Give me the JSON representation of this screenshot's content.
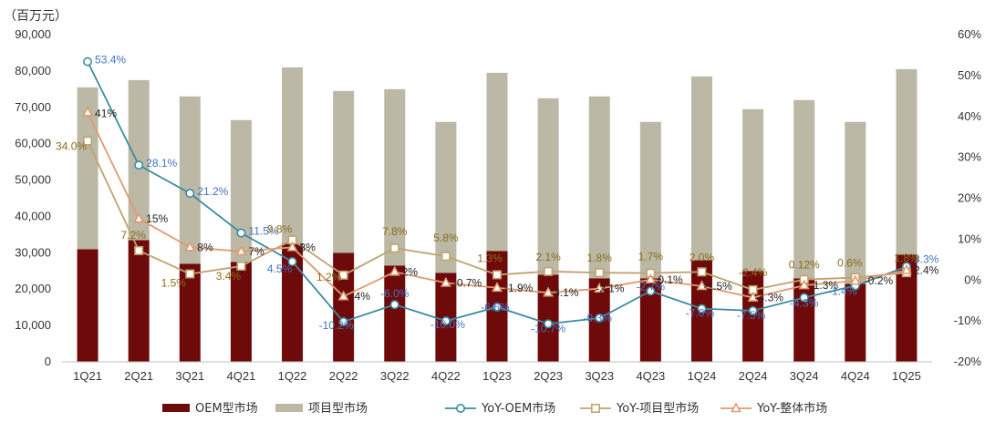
{
  "chart_data": {
    "type": "bar",
    "unit_label": "（百万元）",
    "categories": [
      "1Q21",
      "2Q21",
      "3Q21",
      "4Q21",
      "1Q22",
      "2Q22",
      "3Q22",
      "4Q22",
      "1Q23",
      "2Q23",
      "3Q23",
      "4Q23",
      "1Q24",
      "2Q24",
      "3Q24",
      "4Q24",
      "1Q25"
    ],
    "ylim": [
      0,
      90000
    ],
    "y_ticks": [
      "0",
      "10,000",
      "20,000",
      "30,000",
      "40,000",
      "50,000",
      "60,000",
      "70,000",
      "80,000",
      "90,000"
    ],
    "y2lim": [
      -20,
      60
    ],
    "y2_ticks": [
      "-20%",
      "-10%",
      "0%",
      "10%",
      "20%",
      "30%",
      "40%",
      "50%",
      "60%"
    ],
    "stacked": true,
    "colors": {
      "oem": "#6e0a0a",
      "project": "#bbb8a6",
      "yoy_oem": "#3b8ba0",
      "yoy_project": "#c0a26e",
      "yoy_total": "#e09a70",
      "oem_label": "#4472c4",
      "project_label": "#8a6d1a",
      "total_label": "#222222"
    },
    "series": [
      {
        "name": "OEM型市场",
        "kind": "bar",
        "values": [
          31000,
          33500,
          27000,
          27500,
          32500,
          30000,
          26500,
          24500,
          30500,
          24000,
          23000,
          23000,
          28000,
          25000,
          23000,
          21500,
          29500
        ]
      },
      {
        "name": "项目型市场",
        "kind": "bar",
        "values": [
          44500,
          44000,
          46000,
          39000,
          48500,
          44500,
          48500,
          41500,
          49000,
          48500,
          50000,
          43000,
          50500,
          44500,
          49000,
          44500,
          51000
        ]
      },
      {
        "name": "YoY-OEM市场",
        "kind": "line",
        "axis": "right",
        "values": [
          53.4,
          28.1,
          21.2,
          11.5,
          4.5,
          -10.2,
          -6.0,
          -10.0,
          -6.6,
          -10.7,
          -9.3,
          -2.7,
          -7.0,
          -7.5,
          -4.3,
          -1.4,
          3.3
        ],
        "labels": [
          "53.4%",
          "28.1%",
          "21.2%",
          "11.5%",
          "4.5%",
          "-10.2%",
          "-6.0%",
          "-10.0%",
          "-6.6%",
          "-10.7%",
          "-9.3%",
          "-2.7%",
          "-7.0%",
          "-7.5%",
          "-4.3%",
          "-1.4%",
          "3.3%"
        ]
      },
      {
        "name": "YoY-项目型市场",
        "kind": "line",
        "axis": "right",
        "values": [
          34.0,
          7.2,
          1.5,
          3.4,
          9.8,
          1.2,
          7.8,
          5.8,
          1.3,
          2.1,
          1.8,
          1.7,
          2.0,
          -2.4,
          0.12,
          0.6,
          1.8
        ],
        "labels": [
          "34.0%",
          "7.2%",
          "1.5%",
          "3.4%",
          "9.8%",
          "1.2%",
          "7.8%",
          "5.8%",
          "1.3%",
          "2.1%",
          "1.8%",
          "1.7%",
          "2.0%",
          "-2.4%",
          "0.12%",
          "0.6%",
          "1.8%"
        ]
      },
      {
        "name": "YoY-整体市场",
        "kind": "line",
        "axis": "right",
        "values": [
          41,
          15,
          8,
          7,
          8,
          -4,
          2,
          -0.7,
          -1.9,
          -3.1,
          -2.1,
          0.1,
          -1.5,
          -4.3,
          -1.3,
          -0.2,
          2.4
        ],
        "labels": [
          "41%",
          "15%",
          "8%",
          "7%",
          "8%",
          "-4%",
          "2%",
          "-0.7%",
          "-1.9%",
          "-3.1%",
          "-2.1%",
          "0.1%",
          "-1.5%",
          "-4.3%",
          "-1.3%",
          "-0.2%",
          "2.4%"
        ]
      }
    ],
    "legend_position": "bottom",
    "grid": false
  }
}
